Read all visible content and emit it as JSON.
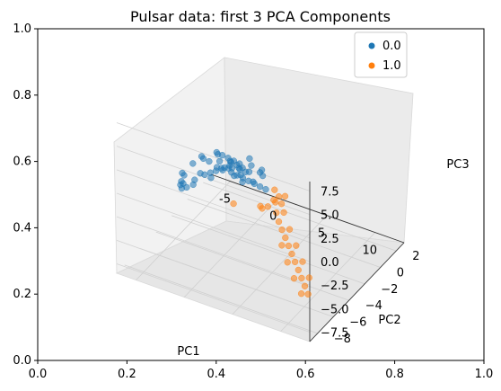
{
  "chart_data": {
    "type": "scatter",
    "title": "Pulsar data: first 3 PCA Components",
    "projection": "3d",
    "xlabel": "PC1",
    "ylabel": "PC2",
    "zlabel": "PC3",
    "xlim": [
      -7,
      13
    ],
    "ylim": [
      -9,
      3
    ],
    "zlim": [
      -8.5,
      8.5
    ],
    "x_ticks": [
      "-5",
      "0",
      "5",
      "10"
    ],
    "x_tick_values": [
      -5,
      0,
      5,
      10
    ],
    "y_ticks": [
      "2",
      "0",
      "−2",
      "−4",
      "−6",
      "−8"
    ],
    "y_tick_values": [
      2,
      0,
      -2,
      -4,
      -6,
      -8
    ],
    "z_ticks": [
      "7.5",
      "5.0",
      "2.5",
      "0.0",
      "−2.5",
      "−5.0",
      "−7.5"
    ],
    "z_tick_values": [
      7.5,
      5.0,
      2.5,
      0.0,
      -2.5,
      -5.0,
      -7.5
    ],
    "grid": true,
    "legend_position": "top-right",
    "background_axes": {
      "xlim": [
        0.0,
        1.0
      ],
      "ylim": [
        0.0,
        1.0
      ],
      "x_ticks": [
        "0.0",
        "0.2",
        "0.4",
        "0.6",
        "0.8",
        "1.0"
      ],
      "y_ticks": [
        "0.0",
        "0.2",
        "0.4",
        "0.6",
        "0.8",
        "1.0"
      ]
    },
    "series": [
      {
        "name": "0.0",
        "color": "#1f77b4",
        "points": [
          [
            -6.0,
            -2.0,
            -4.5
          ],
          [
            -5.5,
            -2.5,
            -3.0
          ],
          [
            -5.0,
            -3.0,
            -3.5
          ],
          [
            -4.5,
            -3.5,
            -2.0
          ],
          [
            -4.0,
            -3.0,
            -1.0
          ],
          [
            -3.5,
            -2.5,
            -0.5
          ],
          [
            -3.0,
            -4.0,
            -1.5
          ],
          [
            -2.5,
            -3.5,
            0.5
          ],
          [
            -2.0,
            -4.5,
            0.0
          ],
          [
            -1.5,
            -4.0,
            1.0
          ],
          [
            -1.0,
            -3.5,
            1.5
          ],
          [
            -0.5,
            -5.0,
            0.5
          ],
          [
            0.0,
            -4.5,
            2.0
          ],
          [
            0.5,
            -4.0,
            1.0
          ],
          [
            1.0,
            -5.5,
            2.5
          ],
          [
            1.5,
            -5.0,
            3.0
          ],
          [
            2.0,
            -4.5,
            2.0
          ],
          [
            2.5,
            -6.0,
            3.5
          ],
          [
            3.0,
            -5.5,
            2.5
          ],
          [
            3.5,
            -5.0,
            4.0
          ],
          [
            4.0,
            -6.5,
            3.0
          ],
          [
            4.5,
            -6.0,
            4.5
          ],
          [
            5.0,
            -5.5,
            3.5
          ],
          [
            5.5,
            -7.0,
            4.0
          ],
          [
            6.0,
            -6.5,
            5.0
          ],
          [
            -3.0,
            -2.0,
            -2.5
          ],
          [
            -2.0,
            -2.5,
            -1.5
          ],
          [
            -1.0,
            -2.0,
            -1.0
          ],
          [
            0.0,
            -3.0,
            -0.5
          ],
          [
            1.0,
            -3.5,
            0.0
          ],
          [
            2.0,
            -4.0,
            0.5
          ],
          [
            3.0,
            -4.5,
            1.0
          ],
          [
            4.0,
            -5.0,
            1.5
          ],
          [
            5.0,
            -5.5,
            2.0
          ],
          [
            6.0,
            -6.0,
            2.5
          ],
          [
            -4.0,
            -1.5,
            -3.5
          ],
          [
            -6.5,
            -1.5,
            -5.5
          ],
          [
            -5.8,
            -2.2,
            -5.0
          ],
          [
            -4.8,
            -2.8,
            -4.0
          ],
          [
            -3.8,
            -3.2,
            -3.0
          ],
          [
            0.5,
            -5.5,
            4.0
          ],
          [
            1.5,
            -6.0,
            4.5
          ],
          [
            2.5,
            -6.5,
            5.0
          ],
          [
            3.5,
            -7.0,
            5.5
          ],
          [
            4.5,
            -7.5,
            6.0
          ],
          [
            5.5,
            -7.5,
            5.5
          ],
          [
            6.5,
            -7.0,
            5.0
          ],
          [
            2.0,
            -5.5,
            3.5
          ],
          [
            3.0,
            -6.0,
            4.0
          ],
          [
            4.0,
            -6.5,
            4.5
          ],
          [
            -1.5,
            -3.0,
            -0.5
          ],
          [
            -0.5,
            -3.5,
            0.0
          ],
          [
            0.5,
            -4.5,
            1.5
          ],
          [
            1.5,
            -4.5,
            1.0
          ],
          [
            2.5,
            -5.0,
            2.5
          ],
          [
            3.5,
            -5.5,
            3.0
          ]
        ]
      },
      {
        "name": "1.0",
        "color": "#ff7f0e",
        "points": [
          [
            7.0,
            -6.0,
            1.5
          ],
          [
            7.5,
            -6.5,
            1.0
          ],
          [
            8.0,
            -6.8,
            0.5
          ],
          [
            8.5,
            -7.0,
            0.0
          ],
          [
            9.0,
            -7.2,
            -0.5
          ],
          [
            9.5,
            -7.4,
            -1.0
          ],
          [
            10.0,
            -7.6,
            -1.5
          ],
          [
            10.5,
            -7.8,
            -2.0
          ],
          [
            11.0,
            -8.0,
            -2.5
          ],
          [
            11.5,
            -8.2,
            -3.0
          ],
          [
            12.0,
            -8.4,
            -3.5
          ],
          [
            12.5,
            -8.6,
            -4.0
          ],
          [
            7.2,
            -5.8,
            2.0
          ],
          [
            8.2,
            -6.4,
            1.2
          ],
          [
            9.2,
            -6.9,
            0.2
          ],
          [
            10.2,
            -7.3,
            -0.8
          ],
          [
            11.2,
            -7.7,
            -1.8
          ],
          [
            12.2,
            -8.1,
            -2.8
          ],
          [
            8.8,
            -7.4,
            -1.2
          ],
          [
            9.8,
            -7.9,
            -2.2
          ],
          [
            10.8,
            -8.3,
            -3.2
          ],
          [
            11.8,
            -8.6,
            -4.2
          ],
          [
            6.5,
            -5.5,
            2.2
          ],
          [
            7.8,
            -6.2,
            1.8
          ],
          [
            4.0,
            -4.0,
            -2.0
          ],
          [
            5.0,
            -4.5,
            -1.0
          ],
          [
            3.0,
            -3.0,
            -3.0
          ],
          [
            -1.0,
            -1.5,
            -5.5
          ],
          [
            6.0,
            -5.0,
            0.5
          ],
          [
            8.0,
            -6.0,
            2.5
          ]
        ]
      }
    ]
  }
}
